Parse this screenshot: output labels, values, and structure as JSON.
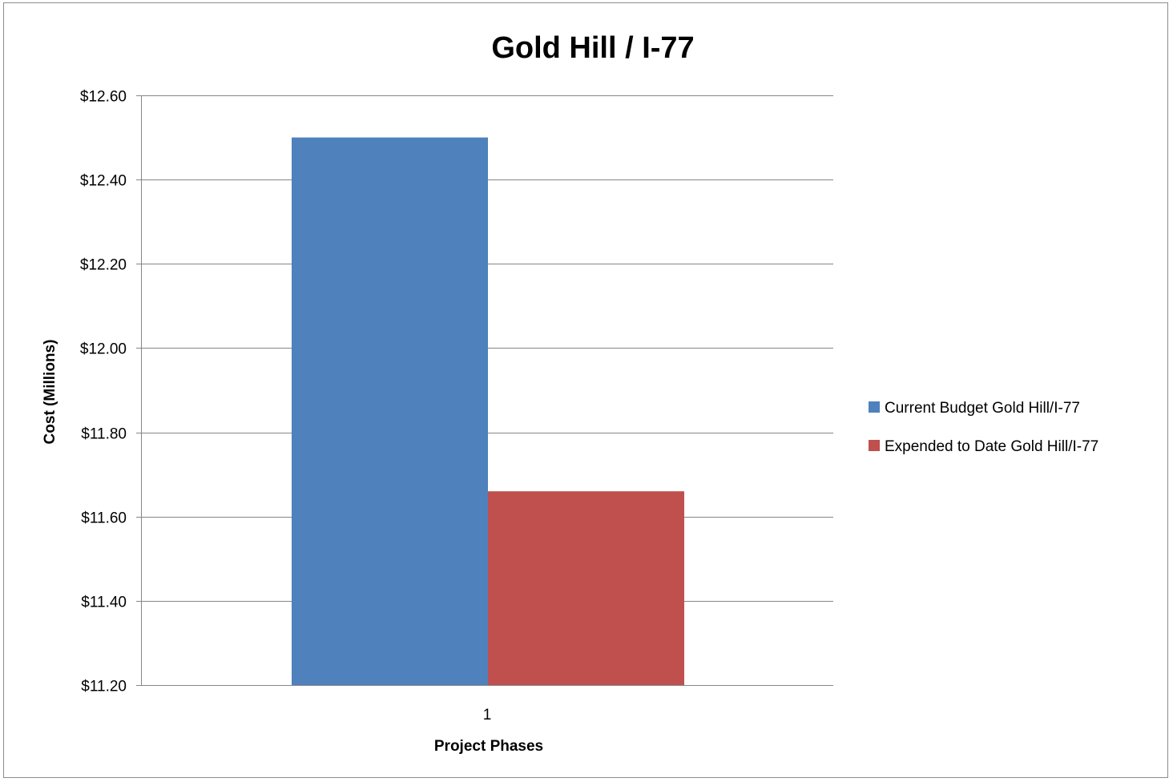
{
  "chart_data": {
    "type": "bar",
    "title": "Gold Hill / I-77",
    "xlabel": "Project Phases",
    "ylabel": "Cost (Millions)",
    "categories": [
      "1"
    ],
    "series": [
      {
        "name": "Current Budget Gold Hill/I-77",
        "values": [
          12.5
        ],
        "color": "#4f81bd"
      },
      {
        "name": "Expended to Date Gold Hill/I-77",
        "values": [
          11.66
        ],
        "color": "#c0504d"
      }
    ],
    "ylim": [
      11.2,
      12.6
    ],
    "yticks": [
      11.2,
      11.4,
      11.6,
      11.8,
      12.0,
      12.2,
      12.4,
      12.6
    ],
    "ytick_labels": [
      "$11.20",
      "$11.40",
      "$11.60",
      "$11.80",
      "$12.00",
      "$12.20",
      "$12.40",
      "$12.60"
    ],
    "grid": true,
    "legend_position": "right"
  }
}
